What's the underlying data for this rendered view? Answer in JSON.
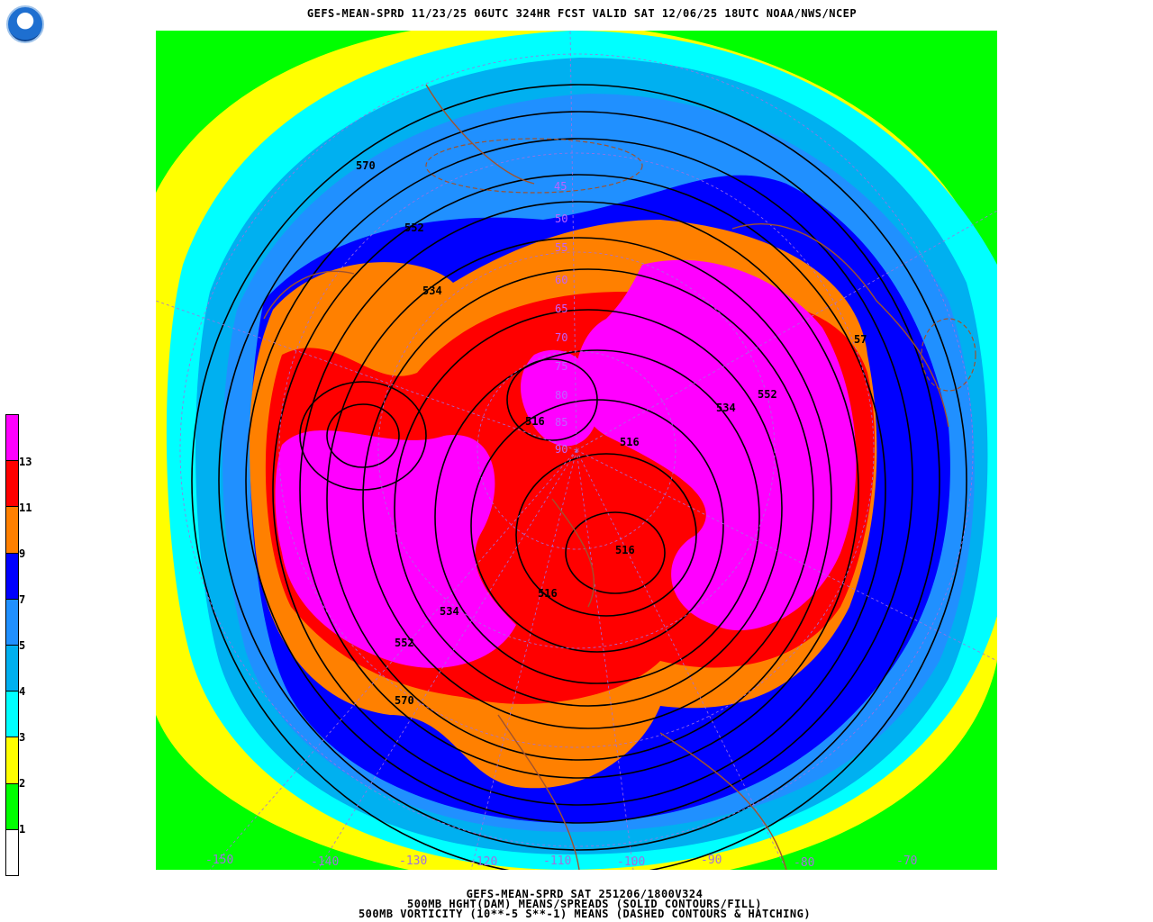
{
  "title": "GEFS-MEAN-SPRD 11/23/25 06UTC 324HR FCST VALID SAT 12/06/25 18UTC NOAA/NWS/NCEP",
  "logo_text": "NOAA",
  "footer": [
    "GEFS-MEAN-SPRD SAT 251206/1800V324",
    "500MB HGHT(DAM) MEANS/SPREADS (SOLID CONTOURS/FILL)",
    "500MB VORTICITY (10**-5 S**-1) MEANS (DASHED CONTOURS & HATCHING)"
  ],
  "colorbar": {
    "labels": [
      "13",
      "11",
      "9",
      "7",
      "5",
      "4",
      "3",
      "2",
      "1"
    ],
    "colors": [
      "#ff00ff",
      "#ff0000",
      "#ff8000",
      "#0000ff",
      "#2090ff",
      "#00b0f0",
      "#00ffff",
      "#ffff00",
      "#00ff00",
      "#ffffff"
    ]
  },
  "longitude_labels": [
    "-150",
    "-140",
    "-130",
    "-120",
    "-110",
    "-100",
    "-90",
    "-80",
    "-70"
  ],
  "latitude_labels": [
    "45",
    "50",
    "55",
    "60",
    "65",
    "70",
    "75",
    "80",
    "85",
    "90"
  ],
  "contour_labels": [
    "570",
    "552",
    "534",
    "516",
    "516",
    "534",
    "552",
    "570",
    "516",
    "534",
    "552",
    "57",
    "516"
  ],
  "colors": {
    "height_contour": "#000000",
    "coastline": "#a0522d",
    "grid": "#a070e0"
  }
}
